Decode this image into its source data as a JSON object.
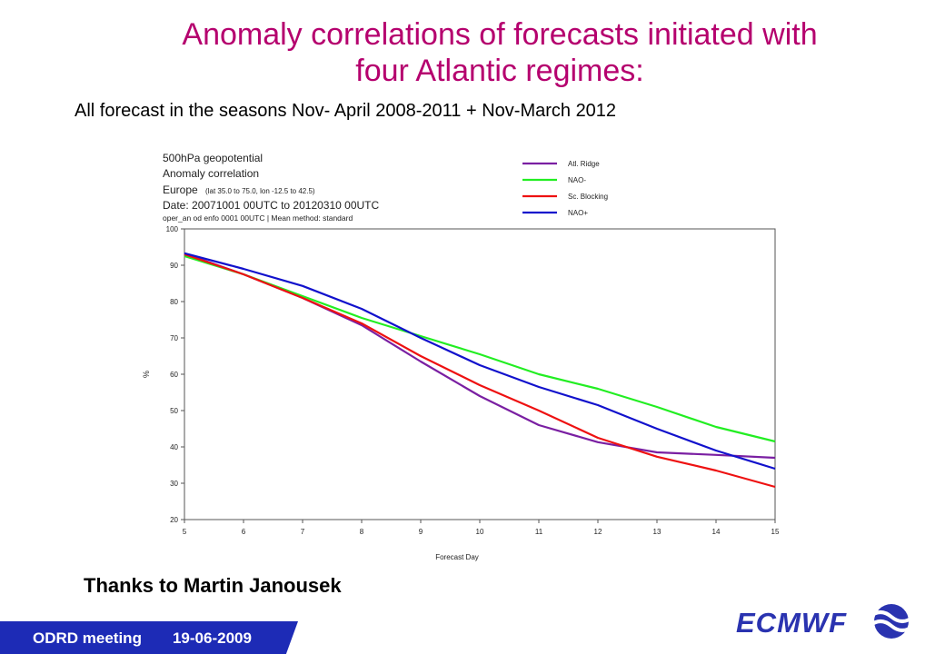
{
  "slide": {
    "title_line1": "Anomaly correlations of forecasts initiated with",
    "title_line2": "four Atlantic regimes:",
    "subtitle": "All forecast in the seasons Nov- April 2008-2011 + Nov-March 2012",
    "thanks": "Thanks to Martin Janousek",
    "footer_meeting": "ODRD meeting",
    "footer_date": "19-06-2009",
    "logo_text": "ECMWF",
    "logo_icon": "ecmwf-logo-icon",
    "title_color": "#b5006e",
    "footer_color": "#1d2bb6"
  },
  "chart_data": {
    "type": "line",
    "header": {
      "line1": "500hPa geopotential",
      "line2": "Anomaly correlation",
      "line3_main": "Europe",
      "line3_small": "(lat 35.0 to 75.0, lon -12.5 to 42.5)",
      "line4": "Date: 20071001 00UTC to 20120310 00UTC",
      "line5": "oper_an od enfo 0001 00UTC | Mean method: standard"
    },
    "xlabel": "Forecast Day",
    "ylabel": "%",
    "xlim": [
      5,
      15
    ],
    "ylim": [
      20,
      100
    ],
    "x": [
      5,
      6,
      7,
      8,
      9,
      10,
      11,
      12,
      13,
      14,
      15
    ],
    "yticks": [
      20,
      30,
      40,
      50,
      60,
      70,
      80,
      90,
      100
    ],
    "grid": false,
    "legend_position": "top-right",
    "series": [
      {
        "name": "Atl. Ridge",
        "color": "#7a1fa2",
        "values": [
          93.2,
          87.5,
          81.0,
          73.5,
          63.5,
          54.0,
          46.0,
          41.3,
          38.5,
          37.8,
          37.0
        ]
      },
      {
        "name": "NAO-",
        "color": "#22ee22",
        "values": [
          92.5,
          87.5,
          81.5,
          75.5,
          70.5,
          65.5,
          60.0,
          56.0,
          51.0,
          45.5,
          41.5
        ]
      },
      {
        "name": "Sc. Blocking",
        "color": "#ee1111",
        "values": [
          93.0,
          87.5,
          81.0,
          74.0,
          65.0,
          57.0,
          50.0,
          42.5,
          37.3,
          33.5,
          29.0
        ]
      },
      {
        "name": "NAO+",
        "color": "#1111cc",
        "values": [
          93.3,
          89.0,
          84.3,
          78.0,
          70.0,
          62.5,
          56.5,
          51.5,
          45.0,
          39.0,
          34.0
        ]
      }
    ]
  }
}
